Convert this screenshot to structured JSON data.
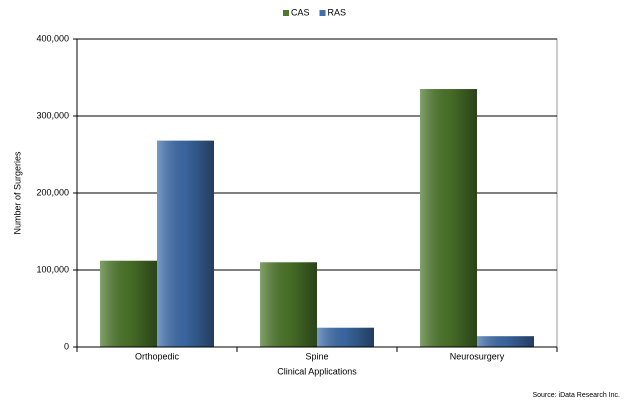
{
  "chart_data": {
    "type": "bar",
    "categories": [
      "Orthopedic",
      "Spine",
      "Neurosurgery"
    ],
    "series": [
      {
        "name": "CAS",
        "color": "#4f7a2c",
        "values": [
          112000,
          110000,
          335000
        ]
      },
      {
        "name": "RAS",
        "color": "#3f6fae",
        "values": [
          268000,
          25000,
          14000
        ]
      }
    ],
    "ylim": [
      0,
      400000
    ],
    "yticks": [
      0,
      {
        "value": 100000,
        "label": "100,000"
      },
      {
        "value": 200000,
        "label": "200,000"
      },
      {
        "value": 300000,
        "label": "300,000"
      },
      {
        "value": 400000,
        "label": "400,000"
      }
    ],
    "grid": true,
    "xlabel": "Clinical Applications",
    "ylabel": "Number of Surgeries",
    "legend": "top",
    "source": "Source: iData Research Inc."
  }
}
